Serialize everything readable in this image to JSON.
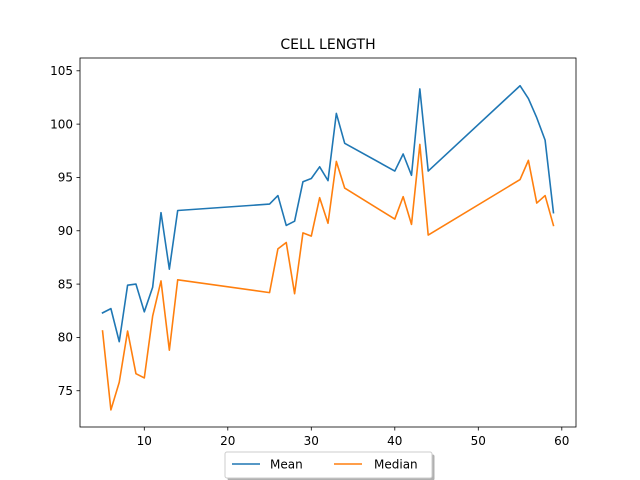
{
  "chart_data": {
    "type": "line",
    "title": "CELL LENGTH",
    "xlabel": "",
    "ylabel": "",
    "xlim": [
      2.3,
      61.7
    ],
    "ylim": [
      71.6,
      106.2
    ],
    "xticks": [
      10,
      20,
      30,
      40,
      50,
      60
    ],
    "yticks": [
      75,
      80,
      85,
      90,
      95,
      100,
      105
    ],
    "legend_position": "bottom-center",
    "grid": false,
    "x": [
      5,
      6,
      7,
      8,
      9,
      10,
      11,
      12,
      13,
      14,
      25,
      26,
      27,
      28,
      29,
      30,
      31,
      32,
      33,
      34,
      40,
      41,
      42,
      43,
      44,
      55,
      56,
      57,
      58,
      59
    ],
    "series": [
      {
        "name": "Mean",
        "color": "#1f77b4",
        "values": [
          82.3,
          82.7,
          79.6,
          84.9,
          85.0,
          82.4,
          84.7,
          91.7,
          86.4,
          91.9,
          92.5,
          93.3,
          90.5,
          90.9,
          94.6,
          94.9,
          96.0,
          94.7,
          101.0,
          98.2,
          95.6,
          97.2,
          95.2,
          103.3,
          95.6,
          103.6,
          102.4,
          100.6,
          98.5,
          91.7
        ]
      },
      {
        "name": "Median",
        "color": "#ff7f0e",
        "values": [
          80.6,
          73.2,
          75.8,
          80.6,
          76.6,
          76.2,
          82.0,
          85.3,
          78.8,
          85.4,
          84.2,
          88.3,
          88.9,
          84.1,
          89.8,
          89.5,
          93.1,
          90.7,
          96.5,
          94.0,
          91.1,
          93.2,
          90.6,
          98.1,
          89.6,
          94.8,
          96.6,
          92.6,
          93.3,
          90.5
        ]
      }
    ]
  }
}
